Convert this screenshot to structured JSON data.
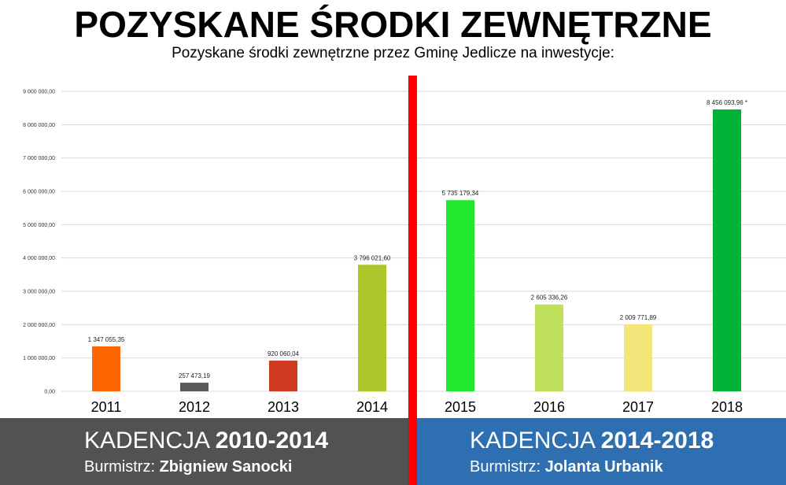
{
  "header": {
    "title": "POZYSKANE ŚRODKI ZEWNĘTRZNE",
    "subtitle": "Pozyskane środki zewnętrzne przez Gminę Jedlicze na inwestycje:"
  },
  "chart_data": {
    "type": "bar",
    "categories": [
      "2011",
      "2012",
      "2013",
      "2014",
      "2015",
      "2016",
      "2017",
      "2018"
    ],
    "values": [
      1347055.35,
      257473.19,
      920060.04,
      3796021.6,
      5735179.34,
      2605336.26,
      2009771.89,
      8456093.96
    ],
    "data_labels": [
      "1 347 055,35",
      "257 473,19",
      "920 060,04",
      "3 796 021,60",
      "5 735 179,34",
      "2 605 336,26",
      "2 009 771,89",
      "8 456 093,96 *"
    ],
    "colors": [
      "#ff6600",
      "#595959",
      "#d03a22",
      "#aec62a",
      "#22e82e",
      "#bfe05a",
      "#f4e57a",
      "#00b336"
    ],
    "ylim": [
      0,
      9000000
    ],
    "y_ticks": [
      0,
      1000000,
      2000000,
      3000000,
      4000000,
      5000000,
      6000000,
      7000000,
      8000000,
      9000000
    ],
    "y_tick_labels": [
      "0,00",
      "1 000 000,00",
      "2 000 000,00",
      "3 000 000,00",
      "4 000 000,00",
      "5 000 000,00",
      "6 000 000,00",
      "7 000 000,00",
      "8 000 000,00",
      "9 000 000,00"
    ],
    "grid": true,
    "divider_color": "#ff0000"
  },
  "terms": {
    "left": {
      "label": "KADENCJA",
      "years": "2010-2014",
      "mayor_label": "Burmistrz:",
      "mayor_name": "Zbigniew Sanocki",
      "color": "#525252"
    },
    "right": {
      "label": "KADENCJA",
      "years": "2014-2018",
      "mayor_label": "Burmistrz:",
      "mayor_name": "Jolanta Urbanik",
      "color": "#2d6fb0"
    }
  }
}
